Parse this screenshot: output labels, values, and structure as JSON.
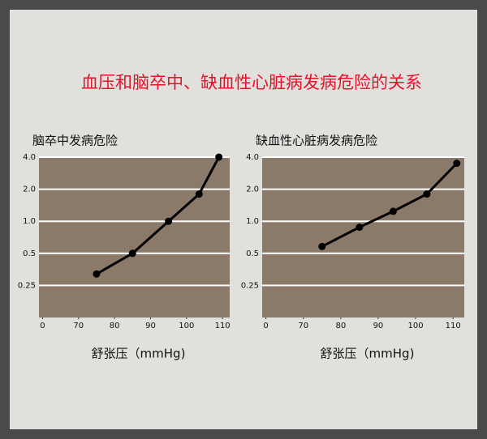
{
  "title": "血压和脑卒中、缺血性心脏病发病危险的关系",
  "chart_data": [
    {
      "type": "line",
      "title": "脑卒中发病危险",
      "x_label": "舒张压（mmHg)",
      "x": [
        75,
        85,
        95,
        103.5,
        109
      ],
      "series": [
        {
          "color": "#000000",
          "values": [
            0.32,
            0.5,
            1.0,
            1.8,
            4.0
          ]
        }
      ],
      "xlim": [
        59,
        112
      ],
      "xticks": [
        {
          "value": 60,
          "label": "0"
        },
        70,
        80,
        90,
        100,
        110
      ],
      "ylim": [
        0.125,
        4
      ],
      "log_y": true,
      "yticks": [
        {
          "value": 4,
          "label": "4.0"
        },
        {
          "value": 2,
          "label": "2.0"
        },
        {
          "value": 1,
          "label": "1.0"
        },
        0.5,
        0.25
      ],
      "grid": true,
      "plot_color": "#8b7a6a"
    },
    {
      "type": "line",
      "title": "缺血性心脏病发病危险",
      "x_label": "舒张压（mmHg)",
      "x": [
        75,
        85,
        94,
        103,
        111
      ],
      "series": [
        {
          "color": "#000000",
          "values": [
            0.58,
            0.88,
            1.24,
            1.8,
            3.5
          ]
        }
      ],
      "xlim": [
        59,
        113
      ],
      "xticks": [
        {
          "value": 60,
          "label": "0"
        },
        70,
        80,
        90,
        100,
        110
      ],
      "ylim": [
        0.125,
        4
      ],
      "log_y": true,
      "yticks": [
        {
          "value": 4,
          "label": "4.0"
        },
        {
          "value": 2,
          "label": "2.0"
        },
        {
          "value": 1,
          "label": "1.0"
        },
        0.5,
        0.25
      ],
      "grid": true,
      "plot_color": "#8b7a6a"
    }
  ]
}
